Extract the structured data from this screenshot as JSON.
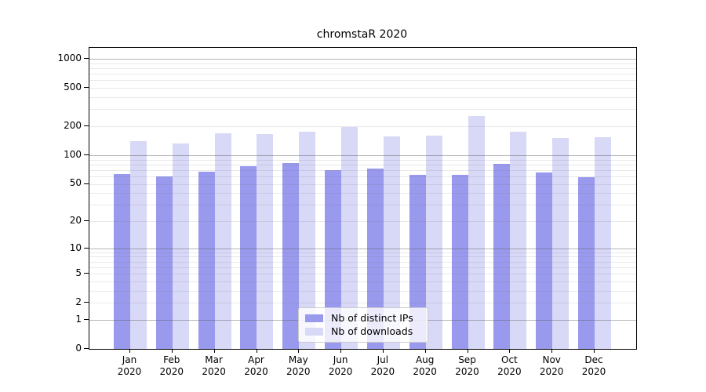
{
  "chart_data": {
    "type": "bar",
    "title": "chromstaR 2020",
    "categories": [
      "Jan 2020",
      "Feb 2020",
      "Mar 2020",
      "Apr 2020",
      "May 2020",
      "Jun 2020",
      "Jul 2020",
      "Aug 2020",
      "Sep 2020",
      "Oct 2020",
      "Nov 2020",
      "Dec 2020"
    ],
    "series": [
      {
        "name": "Nb of distinct IPs",
        "color": "#9999ee",
        "values": [
          63,
          60,
          67,
          76,
          82,
          70,
          73,
          62,
          62,
          81,
          66,
          59
        ]
      },
      {
        "name": "Nb of downloads",
        "color": "#d8d8f7",
        "values": [
          139,
          133,
          170,
          165,
          177,
          198,
          156,
          160,
          255,
          174,
          151,
          154
        ]
      }
    ],
    "yticks": [
      0,
      1,
      2,
      5,
      10,
      20,
      50,
      100,
      200,
      500,
      1000
    ],
    "yscale": "log10(value+1)",
    "ylim": [
      0,
      1300
    ],
    "xlabel": "",
    "ylabel": "",
    "grid": "on",
    "legend_position": "lower-center"
  }
}
